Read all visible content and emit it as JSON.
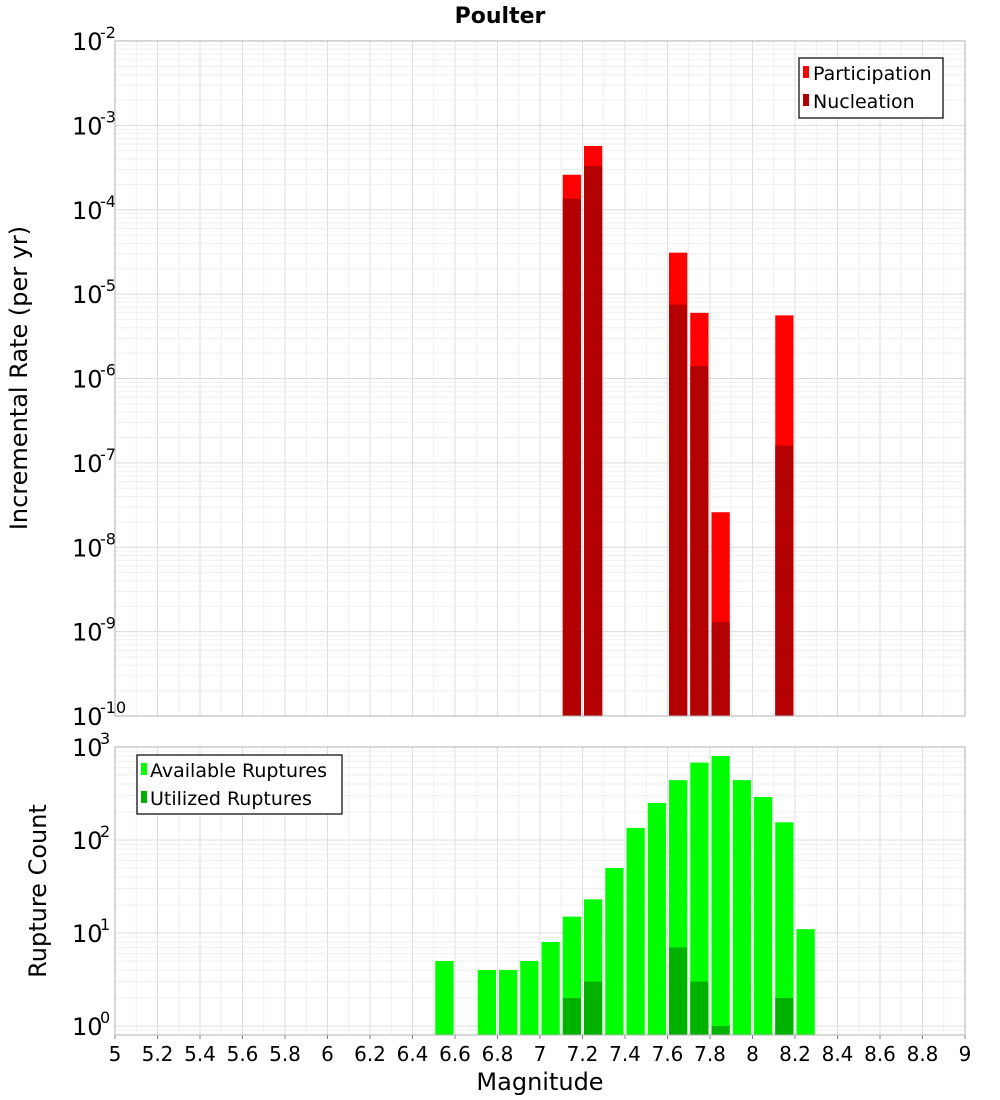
{
  "chart_data": [
    {
      "type": "bar",
      "panel": "rates",
      "title": "Poulter",
      "xlabel": "",
      "ylabel": "Incremental Rate (per yr)",
      "yscale": "log",
      "ylim": [
        1e-10,
        0.01
      ],
      "xlim": [
        5,
        9
      ],
      "bin_width": 0.1,
      "y_tick_exponents": [
        "-2",
        "-3",
        "-4",
        "-5",
        "-6",
        "-7",
        "-8",
        "-9",
        "-10"
      ],
      "y_tick_base": "10",
      "legend": {
        "position": "top-right",
        "entries": [
          "Participation",
          "Nucleation"
        ]
      },
      "series": [
        {
          "name": "Participation",
          "color": "#ff0000",
          "x": [
            7.15,
            7.25,
            7.65,
            7.75,
            7.85,
            8.15
          ],
          "values": [
            0.00026,
            0.00057,
            3.1e-05,
            6e-06,
            2.6e-08,
            5.6e-06
          ]
        },
        {
          "name": "Nucleation",
          "color": "#b30000",
          "x": [
            7.15,
            7.25,
            7.65,
            7.75,
            7.85,
            8.15
          ],
          "values": [
            0.000135,
            0.00033,
            7.5e-06,
            1.4e-06,
            1.3e-09,
            1.6e-07
          ]
        }
      ]
    },
    {
      "type": "bar",
      "panel": "counts",
      "title": "",
      "xlabel": "Magnitude",
      "ylabel": "Rupture Count",
      "yscale": "log",
      "ylim": [
        0.8,
        1000
      ],
      "xlim": [
        5,
        9
      ],
      "bin_width": 0.1,
      "y_tick_exponents": [
        "3",
        "2",
        "1",
        "0"
      ],
      "y_tick_base": "10",
      "x_ticks": [
        "5",
        "5.2",
        "5.4",
        "5.6",
        "5.8",
        "6",
        "6.2",
        "6.4",
        "6.6",
        "6.8",
        "7",
        "7.2",
        "7.4",
        "7.6",
        "7.8",
        "8",
        "8.2",
        "8.4",
        "8.6",
        "8.8",
        "9"
      ],
      "legend": {
        "position": "top-left",
        "entries": [
          "Available Ruptures",
          "Utilized Ruptures"
        ]
      },
      "series": [
        {
          "name": "Available Ruptures",
          "color": "#00ff00",
          "x": [
            6.55,
            6.75,
            6.85,
            6.95,
            7.05,
            7.15,
            7.25,
            7.35,
            7.45,
            7.55,
            7.65,
            7.75,
            7.85,
            7.95,
            8.05,
            8.15,
            8.25
          ],
          "values": [
            5,
            4,
            4,
            5,
            8,
            15,
            23,
            50,
            135,
            250,
            440,
            680,
            800,
            440,
            290,
            155,
            11
          ]
        },
        {
          "name": "Utilized Ruptures",
          "color": "#00b200",
          "x": [
            7.15,
            7.25,
            7.65,
            7.75,
            7.85,
            8.15
          ],
          "values": [
            2,
            3,
            7,
            3,
            1,
            2
          ]
        }
      ]
    }
  ]
}
